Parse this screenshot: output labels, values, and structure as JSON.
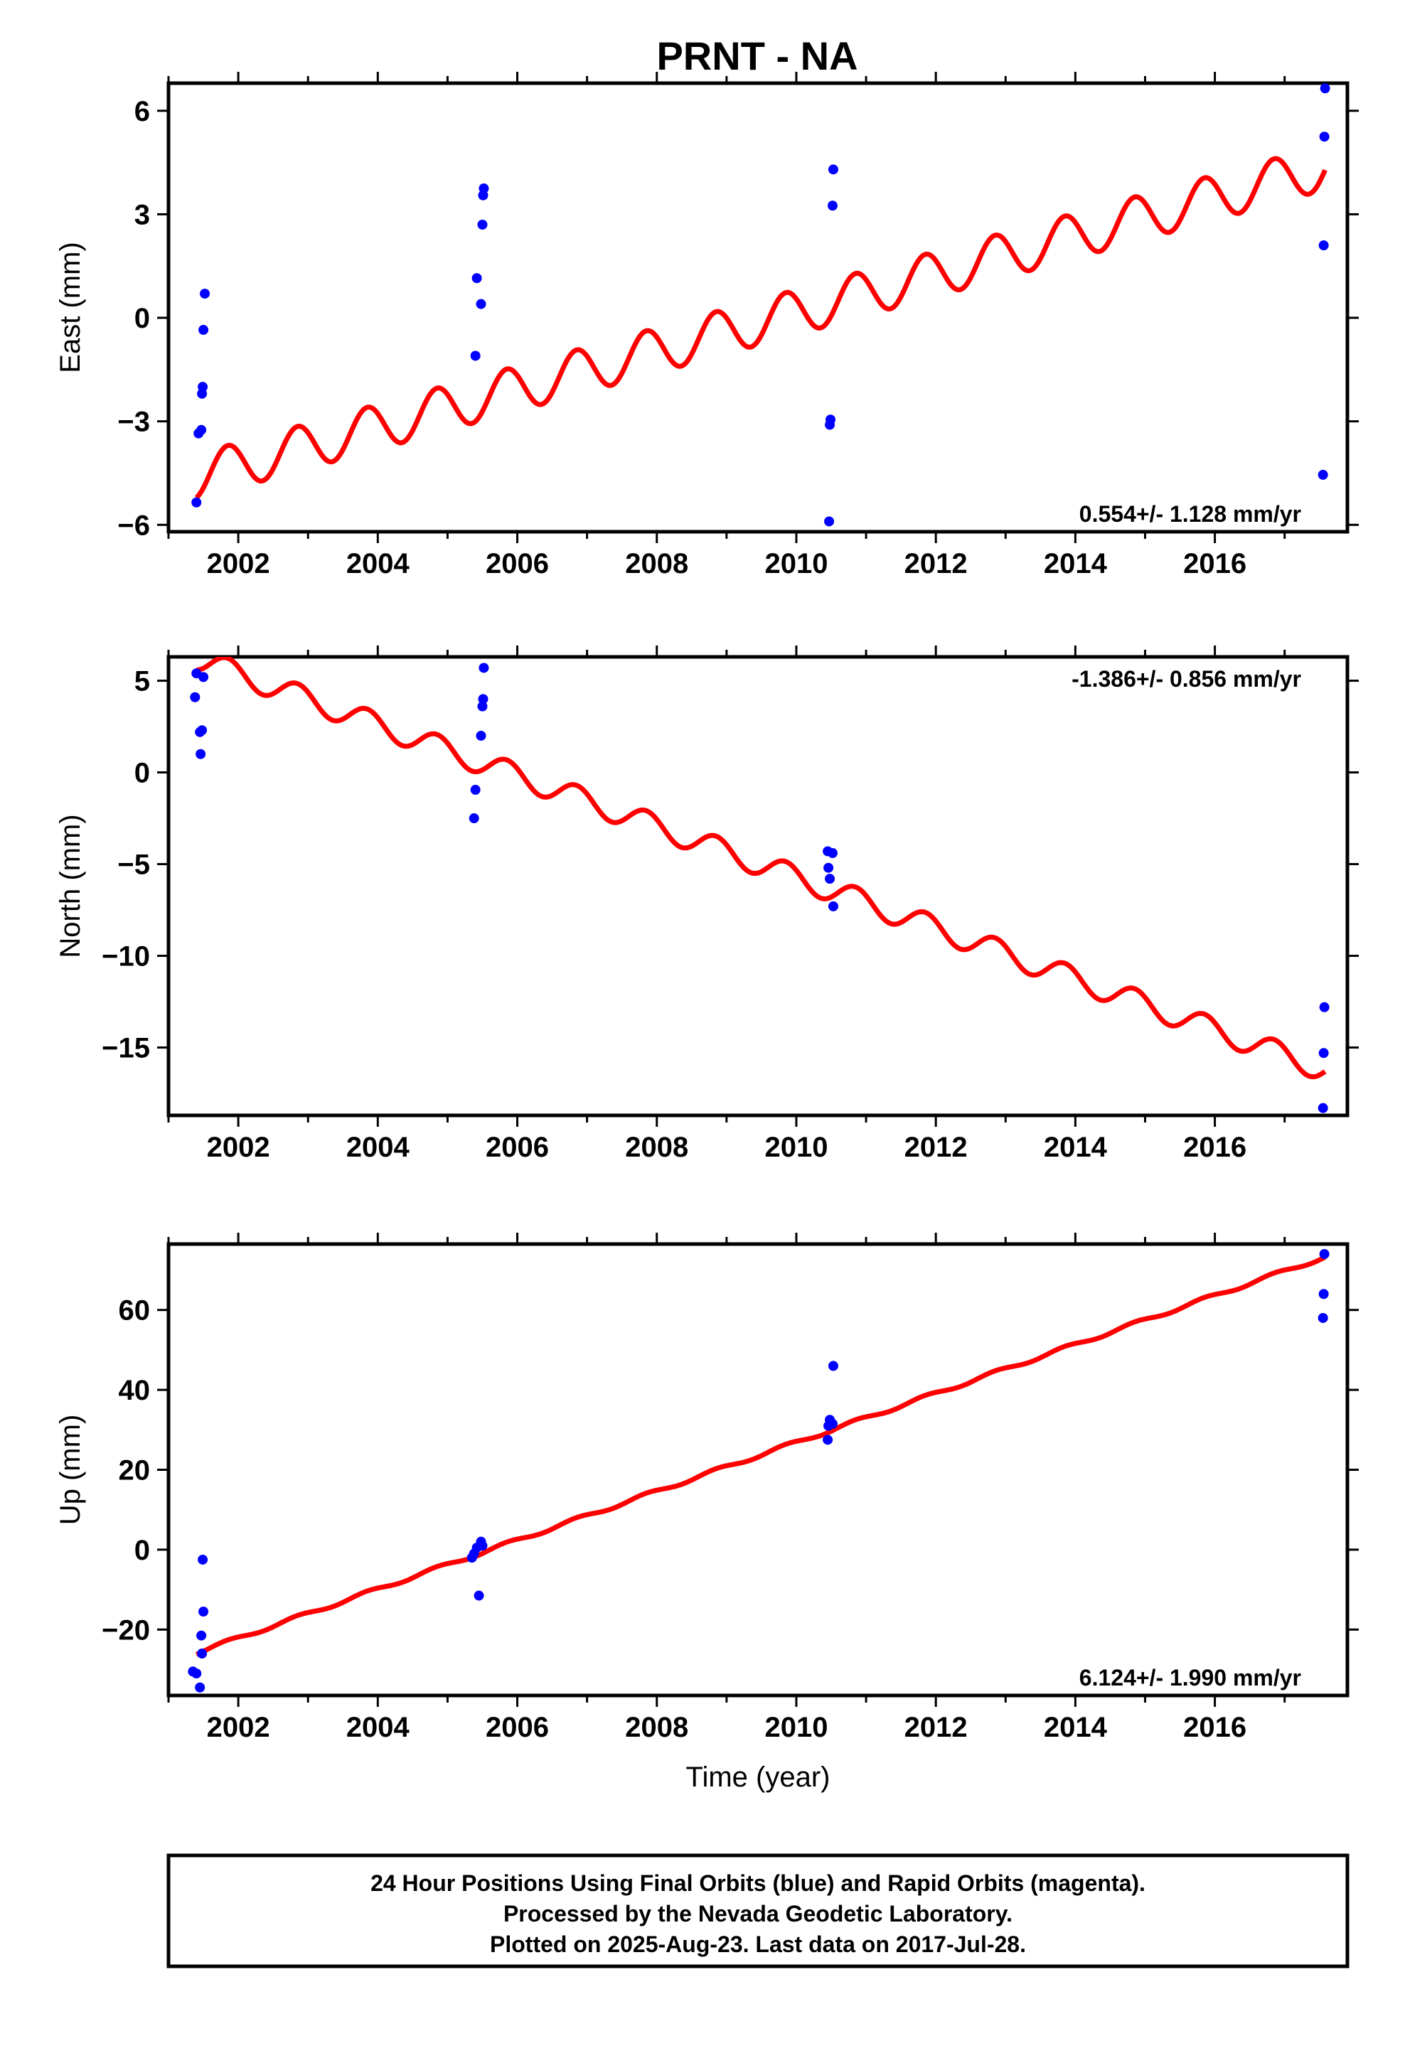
{
  "title": "PRNT - NA",
  "colors": {
    "model": "#ff0000",
    "final_orbits": "#0000ff",
    "frame": "#000000"
  },
  "footer": {
    "line1": "24 Hour Positions Using Final Orbits (blue) and Rapid Orbits (magenta).",
    "line2": "Processed by the Nevada Geodetic Laboratory.",
    "line3": "Plotted on 2025-Aug-23. Last data on 2017-Jul-28."
  },
  "chart_data": [
    {
      "type": "scatter",
      "panel": "east",
      "ylabel": "East (mm)",
      "xlabel": "",
      "xlim": [
        2001.0,
        2017.9
      ],
      "ylim": [
        -6.2,
        6.8
      ],
      "xticks": [
        2002,
        2004,
        2006,
        2008,
        2010,
        2012,
        2014,
        2016
      ],
      "yticks": [
        -6,
        -3,
        0,
        3,
        6
      ],
      "ytick_labels": [
        "−6",
        "−3",
        "0",
        "3",
        "6"
      ],
      "rate_label": "0.554+/- 1.128 mm/yr",
      "rate_position": "bottom-right",
      "points": [
        [
          2001.4,
          -5.35
        ],
        [
          2001.43,
          -3.35
        ],
        [
          2001.47,
          -3.25
        ],
        [
          2001.48,
          -2.2
        ],
        [
          2001.49,
          -2.0
        ],
        [
          2001.5,
          -0.35
        ],
        [
          2001.52,
          0.7
        ],
        [
          2005.4,
          -1.1
        ],
        [
          2005.42,
          1.15
        ],
        [
          2005.48,
          0.4
        ],
        [
          2005.5,
          2.7
        ],
        [
          2005.51,
          3.55
        ],
        [
          2005.52,
          3.75
        ],
        [
          2010.47,
          -5.9
        ],
        [
          2010.48,
          -3.1
        ],
        [
          2010.49,
          -2.95
        ],
        [
          2010.52,
          3.25
        ],
        [
          2010.53,
          4.3
        ],
        [
          2017.55,
          -4.55
        ],
        [
          2017.56,
          2.1
        ],
        [
          2017.57,
          5.25
        ],
        [
          2017.58,
          6.65
        ]
      ],
      "model": {
        "t0": 2001.4,
        "t1": 2017.58,
        "y0": -4.6,
        "rate": 0.554,
        "amplitude": 0.65,
        "phase": 0.6
      }
    },
    {
      "type": "scatter",
      "panel": "north",
      "ylabel": "North (mm)",
      "xlabel": "",
      "xlim": [
        2001.0,
        2017.9
      ],
      "ylim": [
        -18.7,
        6.3
      ],
      "xticks": [
        2002,
        2004,
        2006,
        2008,
        2010,
        2012,
        2014,
        2016
      ],
      "yticks": [
        -15,
        -10,
        -5,
        0,
        5
      ],
      "ytick_labels": [
        "−15",
        "−10",
        "−5",
        "0",
        "5"
      ],
      "rate_label": "-1.386+/- 0.856 mm/yr",
      "rate_position": "top-right",
      "points": [
        [
          2001.38,
          4.1
        ],
        [
          2001.4,
          5.4
        ],
        [
          2001.45,
          2.2
        ],
        [
          2001.46,
          1.0
        ],
        [
          2001.48,
          2.3
        ],
        [
          2001.5,
          5.2
        ],
        [
          2005.38,
          -2.5
        ],
        [
          2005.4,
          -0.95
        ],
        [
          2005.48,
          2.0
        ],
        [
          2005.5,
          3.6
        ],
        [
          2005.51,
          4.0
        ],
        [
          2005.52,
          5.7
        ],
        [
          2010.45,
          -4.3
        ],
        [
          2010.46,
          -5.2
        ],
        [
          2010.48,
          -5.8
        ],
        [
          2010.52,
          -4.4
        ],
        [
          2010.53,
          -7.3
        ],
        [
          2017.55,
          -18.3
        ],
        [
          2017.56,
          -15.3
        ],
        [
          2017.57,
          -12.8
        ]
      ],
      "model": {
        "t0": 2001.4,
        "t1": 2017.58,
        "y0": 6.2,
        "rate": -1.386,
        "amplitude": 0.65,
        "phase": 0.6
      }
    },
    {
      "type": "scatter",
      "panel": "up",
      "ylabel": "Up (mm)",
      "xlabel": "Time (year)",
      "xlim": [
        2001.0,
        2017.9
      ],
      "ylim": [
        -36.5,
        76.5
      ],
      "xticks": [
        2002,
        2004,
        2006,
        2008,
        2010,
        2012,
        2014,
        2016
      ],
      "yticks": [
        -20,
        0,
        20,
        40,
        60
      ],
      "ytick_labels": [
        "−20",
        "0",
        "20",
        "40",
        "60"
      ],
      "rate_label": "6.124+/- 1.990 mm/yr",
      "rate_position": "bottom-right",
      "points": [
        [
          2001.35,
          -30.5
        ],
        [
          2001.4,
          -31.0
        ],
        [
          2001.45,
          -34.5
        ],
        [
          2001.47,
          -21.5
        ],
        [
          2001.48,
          -26.0
        ],
        [
          2001.49,
          -2.5
        ],
        [
          2001.5,
          -15.5
        ],
        [
          2005.35,
          -2.0
        ],
        [
          2005.38,
          -1.0
        ],
        [
          2005.42,
          0.5
        ],
        [
          2005.45,
          -11.5
        ],
        [
          2005.48,
          2.0
        ],
        [
          2005.5,
          1.0
        ],
        [
          2010.45,
          27.5
        ],
        [
          2010.46,
          31.0
        ],
        [
          2010.48,
          32.5
        ],
        [
          2010.52,
          31.5
        ],
        [
          2010.53,
          46.0
        ],
        [
          2017.55,
          58.0
        ],
        [
          2017.56,
          64.0
        ],
        [
          2017.57,
          74.0
        ]
      ],
      "model": {
        "t0": 2001.4,
        "t1": 2017.58,
        "y0": -25.8,
        "rate": 6.124,
        "amplitude": 0.45,
        "phase": 0.6
      }
    }
  ]
}
